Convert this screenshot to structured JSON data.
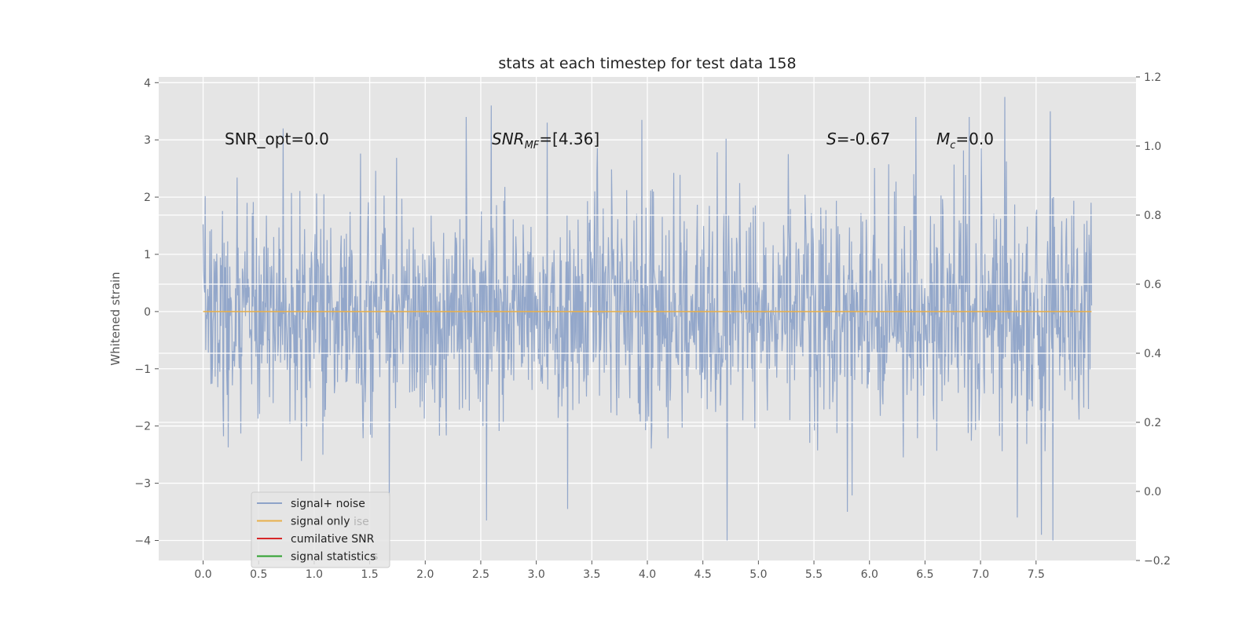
{
  "chart_data": {
    "type": "line",
    "title": "stats at each timestep for test data 158",
    "xlabel": "",
    "ylabel": "Whitened strain",
    "xlim": [
      -0.4,
      8.4
    ],
    "ylim": [
      -4.35,
      4.1
    ],
    "y2lim": [
      -0.2,
      1.2
    ],
    "grid": true,
    "x_ticks": [
      "0.0",
      "0.5",
      "1.0",
      "1.5",
      "2.0",
      "2.5",
      "3.0",
      "3.5",
      "4.0",
      "4.5",
      "5.0",
      "5.5",
      "6.0",
      "6.5",
      "7.0",
      "7.5"
    ],
    "y_ticks": [
      "4",
      "3",
      "2",
      "1",
      "0",
      "−1",
      "−2",
      "−3",
      "−4"
    ],
    "y2_ticks": [
      "1.2",
      "1.0",
      "0.8",
      "0.6",
      "0.4",
      "0.2",
      "0.0",
      "−0.2"
    ],
    "series": [
      {
        "name": "signal+ noise",
        "color": "#8ea3c8",
        "x_range": [
          0.0,
          8.0
        ],
        "num_points": 1700,
        "distribution": "approximately Gaussian noise, std ~1, min ~-4.0, max ~3.8",
        "notable_peaks": [
          {
            "x": 2.37,
            "y": 3.4
          },
          {
            "x": 3.1,
            "y": 3.3
          },
          {
            "x": 3.95,
            "y": 3.35
          },
          {
            "x": 6.42,
            "y": 3.4
          },
          {
            "x": 6.9,
            "y": 3.4
          },
          {
            "x": 7.22,
            "y": 3.75
          },
          {
            "x": 7.63,
            "y": 3.5
          },
          {
            "x": 0.72,
            "y": 3.2
          },
          {
            "x": 4.72,
            "y": -4.0
          },
          {
            "x": 2.55,
            "y": -3.65
          },
          {
            "x": 3.28,
            "y": -3.45
          },
          {
            "x": 5.8,
            "y": -3.5
          },
          {
            "x": 7.55,
            "y": -3.9
          },
          {
            "x": 7.65,
            "y": -4.0
          },
          {
            "x": 7.33,
            "y": -3.6
          }
        ]
      },
      {
        "name": "signal only",
        "color": "#e8b04a",
        "x_range": [
          0.0,
          8.0
        ],
        "value": 0.0
      },
      {
        "name": "cumilative SNR",
        "color": "#d62728",
        "values": []
      },
      {
        "name": "signal statistics",
        "color": "#2ca02c",
        "values": []
      }
    ],
    "horizontal_lines_y2": [
      0.8,
      0.6,
      0.4,
      0.2
    ],
    "annotations": [
      {
        "text": "SNR_opt=0.0"
      },
      {
        "text": "SNR",
        "sub": "MF",
        "rest": "=[4.36]"
      },
      {
        "text": "S",
        "rest": "=-0.67"
      },
      {
        "text": "M",
        "sub": "c",
        "rest": "=0.0"
      }
    ],
    "legend": {
      "position": "lower-left",
      "entries": [
        "signal+ noise",
        "signal only",
        "cumilative SNR",
        "signal statistics"
      ],
      "ghost_text": [
        "ise",
        "s"
      ]
    }
  }
}
